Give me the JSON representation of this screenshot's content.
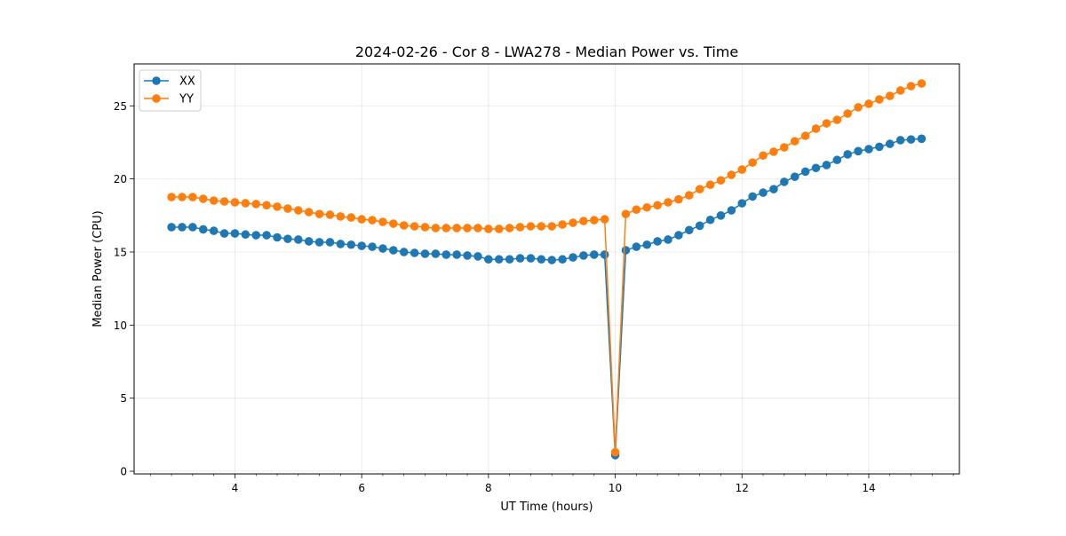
{
  "chart_data": {
    "type": "line",
    "title": "2024-02-26 - Cor 8 - LWA278 - Median Power vs. Time",
    "xlabel": "UT Time (hours)",
    "ylabel": "Median Power (CPU)",
    "xlim": [
      2.41,
      15.43
    ],
    "ylim": [
      -0.18,
      27.87
    ],
    "xticks": [
      4,
      6,
      8,
      10,
      12,
      14
    ],
    "xtick_labels": [
      "4",
      "6",
      "8",
      "10",
      "12",
      "14"
    ],
    "yticks": [
      0,
      5,
      10,
      15,
      20,
      25
    ],
    "ytick_labels": [
      "0",
      "5",
      "10",
      "15",
      "20",
      "25"
    ],
    "grid": true,
    "legend_position": "top-left",
    "x_start": 3.0,
    "x_step_hours": 0.16667,
    "series": [
      {
        "name": "XX",
        "color": "#1f77b4",
        "marker": "circle",
        "values": [
          16.7,
          16.7,
          16.7,
          16.55,
          16.45,
          16.27,
          16.27,
          16.2,
          16.15,
          16.15,
          16.0,
          15.9,
          15.85,
          15.73,
          15.67,
          15.67,
          15.55,
          15.5,
          15.42,
          15.36,
          15.24,
          15.12,
          15.0,
          14.94,
          14.88,
          14.88,
          14.82,
          14.82,
          14.76,
          14.7,
          14.5,
          14.5,
          14.5,
          14.57,
          14.57,
          14.5,
          14.45,
          14.5,
          14.63,
          14.76,
          14.82,
          14.82,
          1.1,
          15.12,
          15.36,
          15.5,
          15.73,
          15.85,
          16.15,
          16.5,
          16.8,
          17.2,
          17.5,
          17.85,
          18.33,
          18.8,
          19.06,
          19.3,
          19.8,
          20.15,
          20.5,
          20.75,
          20.95,
          21.3,
          21.68,
          21.9,
          22.04,
          22.2,
          22.4,
          22.65,
          22.7,
          22.75
        ]
      },
      {
        "name": "YY",
        "color": "#ff7f0e",
        "marker": "circle",
        "values": [
          18.76,
          18.76,
          18.76,
          18.64,
          18.52,
          18.46,
          18.4,
          18.34,
          18.28,
          18.2,
          18.1,
          17.97,
          17.85,
          17.73,
          17.6,
          17.55,
          17.43,
          17.36,
          17.24,
          17.18,
          17.06,
          16.94,
          16.82,
          16.76,
          16.7,
          16.64,
          16.64,
          16.64,
          16.64,
          16.64,
          16.58,
          16.58,
          16.64,
          16.7,
          16.76,
          16.76,
          16.76,
          16.88,
          17.0,
          17.12,
          17.18,
          17.24,
          1.3,
          17.6,
          17.9,
          18.05,
          18.2,
          18.4,
          18.6,
          18.88,
          19.3,
          19.6,
          19.9,
          20.28,
          20.64,
          21.12,
          21.6,
          21.86,
          22.16,
          22.58,
          22.95,
          23.44,
          23.8,
          24.04,
          24.47,
          24.9,
          25.14,
          25.44,
          25.68,
          26.05,
          26.35,
          26.53
        ]
      }
    ]
  }
}
